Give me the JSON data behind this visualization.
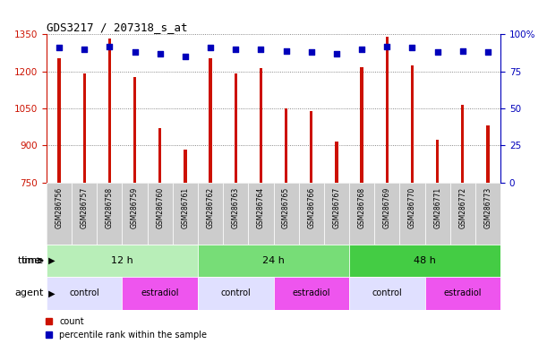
{
  "title": "GDS3217 / 207318_s_at",
  "samples": [
    "GSM286756",
    "GSM286757",
    "GSM286758",
    "GSM286759",
    "GSM286760",
    "GSM286761",
    "GSM286762",
    "GSM286763",
    "GSM286764",
    "GSM286765",
    "GSM286766",
    "GSM286767",
    "GSM286768",
    "GSM286769",
    "GSM286770",
    "GSM286771",
    "GSM286772",
    "GSM286773"
  ],
  "counts": [
    1253,
    1193,
    1335,
    1177,
    970,
    884,
    1255,
    1193,
    1212,
    1050,
    1040,
    915,
    1218,
    1340,
    1225,
    922,
    1065,
    980
  ],
  "percentiles": [
    91,
    90,
    92,
    88,
    87,
    85,
    91,
    90,
    90,
    89,
    88,
    87,
    90,
    92,
    91,
    88,
    89,
    88
  ],
  "ylim_left": [
    750,
    1350
  ],
  "ylim_right": [
    0,
    100
  ],
  "yticks_left": [
    750,
    900,
    1050,
    1200,
    1350
  ],
  "yticks_right": [
    0,
    25,
    50,
    75,
    100
  ],
  "ytick_right_labels": [
    "0",
    "25",
    "50",
    "75",
    "100%"
  ],
  "bar_color": "#CC1100",
  "dot_color": "#0000BB",
  "time_groups": [
    {
      "label": "12 h",
      "start": 0,
      "end": 6,
      "color": "#B8EEB8"
    },
    {
      "label": "24 h",
      "start": 6,
      "end": 12,
      "color": "#77DD77"
    },
    {
      "label": "48 h",
      "start": 12,
      "end": 18,
      "color": "#44CC44"
    }
  ],
  "agent_groups": [
    {
      "label": "control",
      "start": 0,
      "end": 3,
      "color": "#E0E0FF"
    },
    {
      "label": "estradiol",
      "start": 3,
      "end": 6,
      "color": "#EE55EE"
    },
    {
      "label": "control",
      "start": 6,
      "end": 9,
      "color": "#E0E0FF"
    },
    {
      "label": "estradiol",
      "start": 9,
      "end": 12,
      "color": "#EE55EE"
    },
    {
      "label": "control",
      "start": 12,
      "end": 15,
      "color": "#E0E0FF"
    },
    {
      "label": "estradiol",
      "start": 15,
      "end": 18,
      "color": "#EE55EE"
    }
  ],
  "left_axis_color": "#CC1100",
  "right_axis_color": "#0000BB",
  "grid_color": "#666666",
  "xtick_bg": "#CCCCCC",
  "time_label": "time",
  "agent_label": "agent",
  "legend_count": "count",
  "legend_percentile": "percentile rank within the sample",
  "bar_width": 0.12
}
